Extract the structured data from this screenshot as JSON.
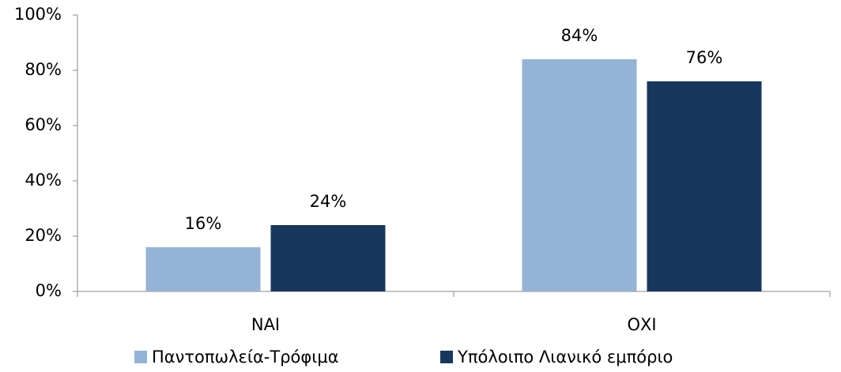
{
  "chart_data": {
    "type": "bar",
    "categories": [
      "ΝΑΙ",
      "ΟΧΙ"
    ],
    "series": [
      {
        "name": "Παντοπωλεία-Τρόφιμα",
        "color": "#95b3d7",
        "values": [
          16,
          84
        ],
        "value_labels": [
          "16%",
          "84%"
        ]
      },
      {
        "name": "Υπόλοιπο Λιανικό εμπόριο",
        "color": "#17375e",
        "values": [
          24,
          76
        ],
        "value_labels": [
          "24%",
          "76%"
        ]
      }
    ],
    "ylim": [
      0,
      100
    ],
    "yticks": [
      {
        "value": 0,
        "label": "0%"
      },
      {
        "value": 20,
        "label": "20%"
      },
      {
        "value": 40,
        "label": "40%"
      },
      {
        "value": 60,
        "label": "60%"
      },
      {
        "value": 80,
        "label": "80%"
      },
      {
        "value": 100,
        "label": "100%"
      }
    ],
    "legend": "bottom"
  }
}
